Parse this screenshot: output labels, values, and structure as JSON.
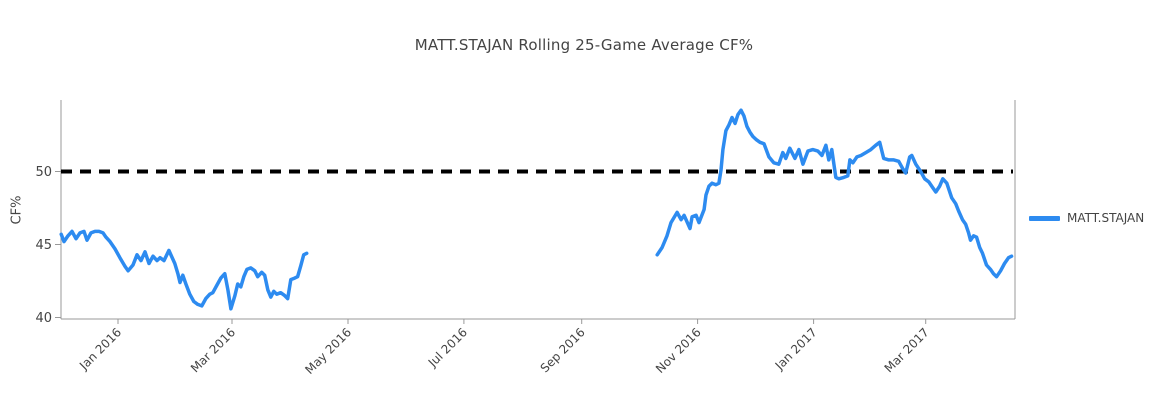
{
  "chart": {
    "title": "MATT.STAJAN Rolling 25-Game Average CF%",
    "ylabel": "CF%",
    "legend": {
      "position": "right",
      "entries": [
        {
          "label": "MATT.STAJAN",
          "color": "#2d8bf0"
        }
      ]
    }
  },
  "chart_data": {
    "type": "line",
    "title": "MATT.STAJAN Rolling 25-Game Average CF%",
    "xlabel": "",
    "ylabel": "CF%",
    "grid": false,
    "legend_position": "right",
    "x_unit": "days since 2015-12-01 (date axis)",
    "x_range": [
      1,
      503
    ],
    "y_range": [
      39.9,
      54.9
    ],
    "y_ticks": [
      40,
      45,
      50
    ],
    "x_ticks": [
      {
        "label": "Jan 2016",
        "x": 31
      },
      {
        "label": "Mar 2016",
        "x": 91
      },
      {
        "label": "May 2016",
        "x": 152
      },
      {
        "label": "Jul 2016",
        "x": 213
      },
      {
        "label": "Sep 2016",
        "x": 275
      },
      {
        "label": "Nov 2016",
        "x": 336
      },
      {
        "label": "Jan 2017",
        "x": 397
      },
      {
        "label": "Mar 2017",
        "x": 456
      }
    ],
    "reference_line": {
      "y": 50,
      "color": "#000000",
      "width": 4,
      "dash": [
        11,
        8
      ]
    },
    "series": [
      {
        "name": "MATT.STAJAN",
        "color": "#2d8bf0",
        "width": 3.5,
        "segments": [
          [
            [
              1.1,
              45.7
            ],
            [
              2.6,
              45.2
            ],
            [
              4.7,
              45.6
            ],
            [
              6.8,
              45.9
            ],
            [
              8.9,
              45.4
            ],
            [
              11,
              45.8
            ],
            [
              13.1,
              45.9
            ],
            [
              14.7,
              45.3
            ],
            [
              16.8,
              45.8
            ],
            [
              18.9,
              45.9
            ],
            [
              21,
              45.9
            ],
            [
              23.1,
              45.8
            ],
            [
              24.7,
              45.5
            ],
            [
              26.8,
              45.2
            ],
            [
              29.4,
              44.7
            ],
            [
              32,
              44.1
            ],
            [
              34.7,
              43.5
            ],
            [
              36.3,
              43.2
            ],
            [
              38.9,
              43.6
            ],
            [
              41,
              44.3
            ],
            [
              43.1,
              43.9
            ],
            [
              45.2,
              44.5
            ],
            [
              47.3,
              43.7
            ],
            [
              49.4,
              44.2
            ],
            [
              51.5,
              43.9
            ],
            [
              53.1,
              44.1
            ],
            [
              55.2,
              43.9
            ],
            [
              57.8,
              44.6
            ],
            [
              60.9,
              43.7
            ],
            [
              62.5,
              43
            ],
            [
              63.6,
              42.4
            ],
            [
              65.1,
              42.9
            ],
            [
              66.7,
              42.3
            ],
            [
              68.8,
              41.6
            ],
            [
              70.9,
              41.1
            ],
            [
              73,
              40.9
            ],
            [
              75.1,
              40.8
            ],
            [
              77.2,
              41.3
            ],
            [
              79.3,
              41.6
            ],
            [
              80.9,
              41.7
            ],
            [
              83,
              42.2
            ],
            [
              85.1,
              42.7
            ],
            [
              87.2,
              43
            ],
            [
              88.8,
              41.9
            ],
            [
              90.4,
              40.6
            ],
            [
              92.5,
              41.5
            ],
            [
              94,
              42.3
            ],
            [
              95.6,
              42.1
            ],
            [
              97.2,
              42.8
            ],
            [
              98.8,
              43.3
            ],
            [
              100.9,
              43.4
            ],
            [
              103,
              43.2
            ],
            [
              104.5,
              42.8
            ],
            [
              106.6,
              43.1
            ],
            [
              108.2,
              42.9
            ],
            [
              109.8,
              41.9
            ],
            [
              111.4,
              41.4
            ],
            [
              113,
              41.8
            ],
            [
              114.5,
              41.6
            ],
            [
              116.6,
              41.7
            ],
            [
              118.7,
              41.5
            ],
            [
              120.3,
              41.3
            ],
            [
              121.9,
              42.6
            ],
            [
              124,
              42.7
            ],
            [
              125.5,
              42.8
            ],
            [
              127.1,
              43.5
            ],
            [
              128.7,
              44.3
            ],
            [
              130.3,
              44.4
            ]
          ],
          [
            [
              314.7,
              44.3
            ],
            [
              317.3,
              44.8
            ],
            [
              319.9,
              45.6
            ],
            [
              322,
              46.5
            ],
            [
              325.2,
              47.2
            ],
            [
              327.3,
              46.7
            ],
            [
              328.9,
              47
            ],
            [
              332,
              46.1
            ],
            [
              333.1,
              46.9
            ],
            [
              335.2,
              47
            ],
            [
              336.7,
              46.5
            ],
            [
              339.4,
              47.4
            ],
            [
              340.4,
              48.4
            ],
            [
              342,
              49
            ],
            [
              343.6,
              49.2
            ],
            [
              345.6,
              49.1
            ],
            [
              347.2,
              49.2
            ],
            [
              348.3,
              50.1
            ],
            [
              349.3,
              51.5
            ],
            [
              350.9,
              52.8
            ],
            [
              352.5,
              53.2
            ],
            [
              354.1,
              53.7
            ],
            [
              355.7,
              53.3
            ],
            [
              357.2,
              53.9
            ],
            [
              358.8,
              54.2
            ],
            [
              360.4,
              53.8
            ],
            [
              361.9,
              53.1
            ],
            [
              363.5,
              52.7
            ],
            [
              365.1,
              52.4
            ],
            [
              366.7,
              52.2
            ],
            [
              368.8,
              52
            ],
            [
              370.9,
              51.9
            ],
            [
              373.5,
              51
            ],
            [
              376.1,
              50.6
            ],
            [
              378.7,
              50.5
            ],
            [
              380.8,
              51.3
            ],
            [
              382.4,
              50.9
            ],
            [
              384.5,
              51.6
            ],
            [
              387.2,
              50.9
            ],
            [
              389.3,
              51.5
            ],
            [
              391.4,
              50.5
            ],
            [
              394,
              51.4
            ],
            [
              396.6,
              51.5
            ],
            [
              399.3,
              51.4
            ],
            [
              401.4,
              51.1
            ],
            [
              403.5,
              51.8
            ],
            [
              405,
              50.8
            ],
            [
              406.6,
              51.5
            ],
            [
              408.7,
              49.6
            ],
            [
              410.3,
              49.5
            ],
            [
              412.9,
              49.6
            ],
            [
              415,
              49.7
            ],
            [
              416.1,
              50.8
            ],
            [
              417.7,
              50.6
            ],
            [
              419.8,
              51
            ],
            [
              421.9,
              51.1
            ],
            [
              424.5,
              51.3
            ],
            [
              427.1,
              51.5
            ],
            [
              429.7,
              51.8
            ],
            [
              431.8,
              52
            ],
            [
              433.9,
              50.9
            ],
            [
              436.6,
              50.8
            ],
            [
              439.2,
              50.8
            ],
            [
              441.8,
              50.7
            ],
            [
              443.9,
              50.2
            ],
            [
              445.5,
              49.9
            ],
            [
              447.6,
              51
            ],
            [
              448.7,
              51.1
            ],
            [
              450.8,
              50.5
            ],
            [
              453.4,
              50
            ],
            [
              455.5,
              49.5
            ],
            [
              457.6,
              49.3
            ],
            [
              459.7,
              48.9
            ],
            [
              461.3,
              48.6
            ],
            [
              463.4,
              49
            ],
            [
              465,
              49.5
            ],
            [
              467.1,
              49.2
            ],
            [
              469.7,
              48.2
            ],
            [
              471.8,
              47.8
            ],
            [
              473.3,
              47.3
            ],
            [
              475.4,
              46.7
            ],
            [
              477,
              46.4
            ],
            [
              478.6,
              45.8
            ],
            [
              479.6,
              45.3
            ],
            [
              481.2,
              45.6
            ],
            [
              482.8,
              45.5
            ],
            [
              484.4,
              44.8
            ],
            [
              485.9,
              44.4
            ],
            [
              488,
              43.6
            ],
            [
              490.1,
              43.3
            ],
            [
              491.7,
              43
            ],
            [
              493.3,
              42.8
            ],
            [
              495.4,
              43.2
            ],
            [
              497.5,
              43.7
            ],
            [
              499.6,
              44.1
            ],
            [
              501.2,
              44.2
            ]
          ]
        ]
      }
    ]
  }
}
